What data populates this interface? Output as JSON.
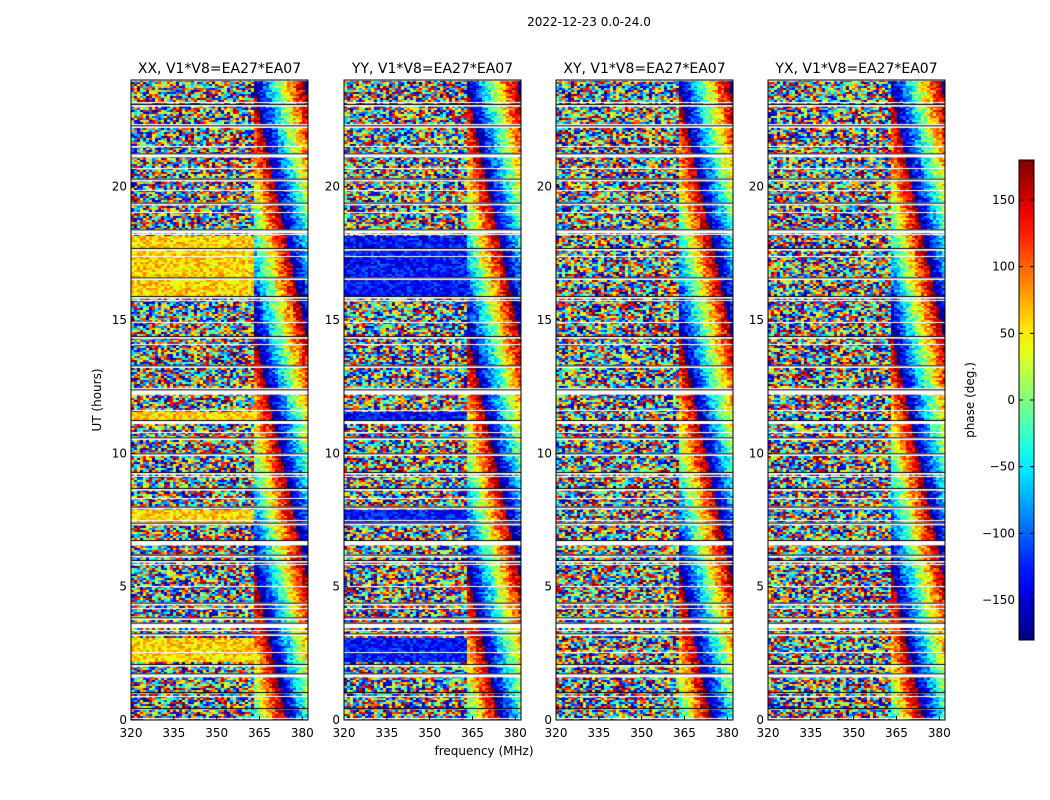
{
  "figure": {
    "suptitle": "2022-12-23 0.0-24.0"
  },
  "chart_data": {
    "type": "heatmap",
    "xlabel": "frequency (MHz)",
    "ylabel": "UT (hours)",
    "xlim": [
      320,
      382
    ],
    "ylim": [
      0,
      24
    ],
    "xticks": [
      "320",
      "335",
      "350",
      "365",
      "380"
    ],
    "yticks": [
      "0",
      "5",
      "10",
      "15",
      "20"
    ],
    "colormap": "jet",
    "colorbar": {
      "label": "phase (deg.)",
      "range": [
        -180,
        180
      ],
      "ticks": [
        "150",
        "100",
        "50",
        "0",
        "−50",
        "−100",
        "−150"
      ],
      "tick_values": [
        150,
        100,
        50,
        0,
        -50,
        -100,
        -150
      ]
    },
    "panels": [
      {
        "title": "XX, V1*V8=EA27*EA07",
        "base_phase_coherent": 60,
        "pattern_start_mhz": 363
      },
      {
        "title": "YY, V1*V8=EA27*EA07",
        "base_phase_coherent": -130,
        "pattern_start_mhz": 363
      },
      {
        "title": "XY, V1*V8=EA27*EA07",
        "base_phase_coherent": null,
        "pattern_start_mhz": 363
      },
      {
        "title": "YX, V1*V8=EA27*EA07",
        "base_phase_coherent": null,
        "pattern_start_mhz": 363
      }
    ],
    "gaps_hours": [
      [
        23.0,
        23.1
      ],
      [
        22.2,
        22.3
      ],
      [
        21.1,
        21.25
      ],
      [
        20.2,
        20.3
      ],
      [
        19.3,
        19.4
      ],
      [
        18.25,
        18.4
      ],
      [
        17.6,
        17.7
      ],
      [
        16.5,
        16.6
      ],
      [
        15.8,
        15.9
      ],
      [
        14.3,
        14.4
      ],
      [
        13.2,
        13.3
      ],
      [
        12.2,
        12.4
      ],
      [
        11.1,
        11.25
      ],
      [
        10.5,
        10.6
      ],
      [
        9.9,
        10.0
      ],
      [
        9.2,
        9.3
      ],
      [
        8.6,
        8.7
      ],
      [
        7.9,
        8.0
      ],
      [
        7.3,
        7.4
      ],
      [
        6.55,
        6.75
      ],
      [
        6.1,
        6.2
      ],
      [
        5.9,
        6.0
      ],
      [
        4.3,
        4.4
      ],
      [
        3.75,
        3.85
      ],
      [
        3.45,
        3.65
      ],
      [
        3.15,
        3.25
      ],
      [
        2.0,
        2.1
      ],
      [
        1.6,
        1.75
      ],
      [
        1.0,
        1.05
      ],
      [
        0.4,
        0.45
      ]
    ]
  }
}
